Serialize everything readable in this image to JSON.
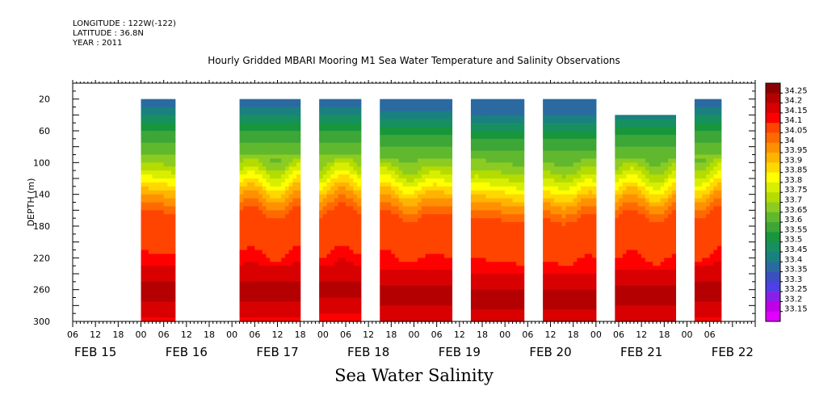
{
  "header": {
    "longitude": "LONGITUDE : 122W(-122)",
    "latitude": "LATITUDE : 36.8N",
    "year": "YEAR : 2011"
  },
  "chart_data": {
    "type": "heatmap",
    "title": "Hourly Gridded MBARI Mooring M1 Sea Water Temperature and Salinity Observations",
    "xlabel": "Sea Water Salinity",
    "ylabel": "DEPTH (m)",
    "x_start_hour": 6,
    "x_end_hour": 186,
    "hour_ticks": [
      "06",
      "12",
      "18",
      "00",
      "06",
      "12",
      "18",
      "00",
      "06",
      "12",
      "18",
      "00",
      "06",
      "12",
      "18",
      "00",
      "06",
      "12",
      "18",
      "00",
      "06",
      "12",
      "18",
      "00",
      "06",
      "12",
      "18",
      "00",
      "06"
    ],
    "day_labels": [
      "FEB 15",
      "FEB 16",
      "FEB 17",
      "FEB 18",
      "FEB 19",
      "FEB 20",
      "FEB 21",
      "FEB 22"
    ],
    "ylim": [
      300,
      0
    ],
    "y_ticks": [
      20,
      60,
      100,
      140,
      180,
      220,
      260,
      300
    ],
    "colorbar_levels": [
      34.25,
      34.2,
      34.15,
      34.1,
      34.05,
      34,
      33.95,
      33.9,
      33.85,
      33.8,
      33.75,
      33.7,
      33.65,
      33.6,
      33.55,
      33.5,
      33.45,
      33.4,
      33.35,
      33.3,
      33.25,
      33.2,
      33.15
    ],
    "colorbar_colors": [
      "#8b0000",
      "#b40000",
      "#d80000",
      "#ff0000",
      "#ff4400",
      "#ff6a00",
      "#ff9100",
      "#ffb400",
      "#ffd800",
      "#ffff00",
      "#d8ee00",
      "#b4dc00",
      "#8ccc22",
      "#60b82e",
      "#3ca636",
      "#18963c",
      "#169060",
      "#1a8080",
      "#2a6aa0",
      "#3a50c0",
      "#4c40e6",
      "#8a20e8",
      "#c000e6",
      "#e000ff"
    ],
    "data_segments": [
      {
        "start_hour": 24,
        "end_hour": 33,
        "top_depth": 20,
        "thermocline_depth": 140
      },
      {
        "start_hour": 50,
        "end_hour": 66,
        "top_depth": 20,
        "thermocline_depth": 140
      },
      {
        "start_hour": 71,
        "end_hour": 82,
        "top_depth": 20,
        "thermocline_depth": 138
      },
      {
        "start_hour": 87,
        "end_hour": 106,
        "top_depth": 20,
        "thermocline_depth": 145
      },
      {
        "start_hour": 111,
        "end_hour": 125,
        "top_depth": 20,
        "thermocline_depth": 150
      },
      {
        "start_hour": 130,
        "end_hour": 144,
        "top_depth": 20,
        "thermocline_depth": 150
      },
      {
        "start_hour": 149,
        "end_hour": 165,
        "top_depth": 40,
        "thermocline_depth": 145
      },
      {
        "start_hour": 170,
        "end_hour": 177,
        "top_depth": 20,
        "thermocline_depth": 140
      }
    ],
    "depth_profile": [
      {
        "depth": 20,
        "value": 33.35
      },
      {
        "depth": 40,
        "value": 33.45
      },
      {
        "depth": 60,
        "value": 33.55
      },
      {
        "depth": 80,
        "value": 33.62
      },
      {
        "depth": 100,
        "value": 33.7
      },
      {
        "depth": 120,
        "value": 33.82
      },
      {
        "depth": 140,
        "value": 33.95
      },
      {
        "depth": 160,
        "value": 34.05
      },
      {
        "depth": 200,
        "value": 34.07
      },
      {
        "depth": 220,
        "value": 34.12
      },
      {
        "depth": 240,
        "value": 34.18
      },
      {
        "depth": 260,
        "value": 34.22
      },
      {
        "depth": 280,
        "value": 34.18
      },
      {
        "depth": 300,
        "value": 34.12
      }
    ]
  }
}
